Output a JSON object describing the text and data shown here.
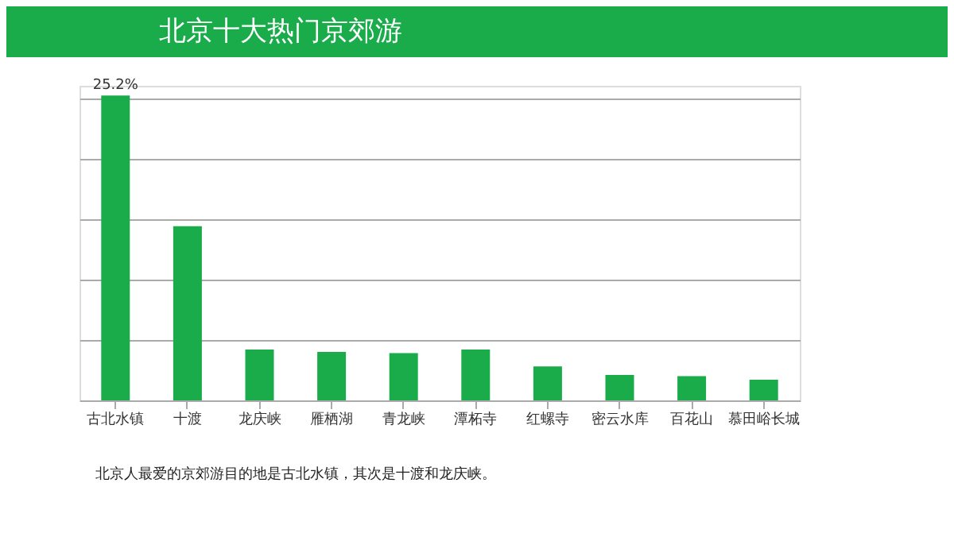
{
  "chart_data": {
    "type": "bar",
    "title": "北京十大热门京郊游",
    "categories": [
      "古北水镇",
      "十渡",
      "龙庆峡",
      "雁栖湖",
      "青龙峡",
      "潭柘寺",
      "红螺寺",
      "密云水库",
      "百花山",
      "慕田峪长城"
    ],
    "values": [
      25.2,
      14.4,
      4.2,
      4.0,
      3.9,
      4.2,
      2.8,
      2.1,
      2.0,
      1.7
    ],
    "value_labels": [
      "25.2%",
      null,
      null,
      null,
      null,
      null,
      null,
      null,
      null,
      null
    ],
    "color": "#1aab4a",
    "grid": "y",
    "annotations": [
      "北京人最爱的京郊游目的地是古北水镇，其次是十渡和龙庆峡。"
    ]
  }
}
